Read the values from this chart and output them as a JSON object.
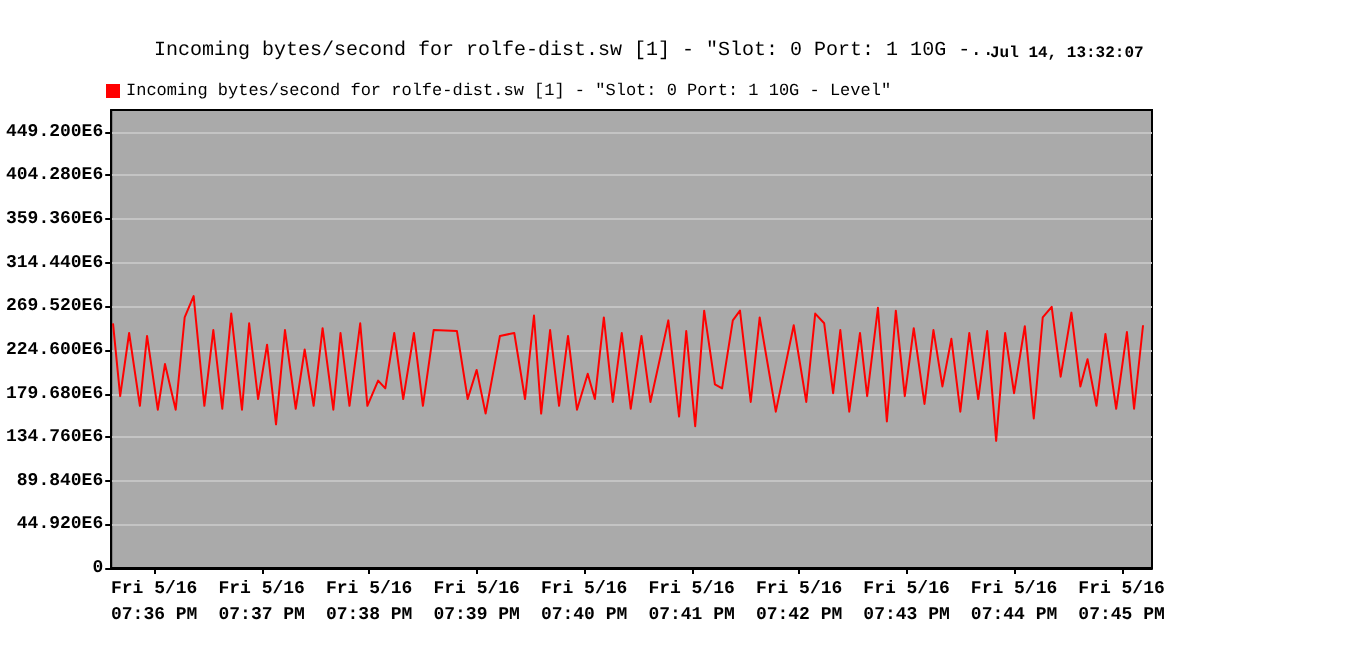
{
  "chart_data": {
    "type": "line",
    "title": "Incoming bytes/second for rolfe-dist.sw [1] - \"Slot: 0 Port: 1 10G -..",
    "annotations": [
      "Jul 14, 13:32:07"
    ],
    "series": [
      {
        "name": "Incoming bytes/second for rolfe-dist.sw [1] - \"Slot: 0 Port: 1 10G - Level\"",
        "color": "#ff0000",
        "x": [
          "--05-16T19:35:37",
          "--05-16T19:35:41",
          "--05-16T19:35:46",
          "--05-16T19:35:52",
          "--05-16T19:35:56",
          "--05-16T19:36:02",
          "--05-16T19:36:06",
          "--05-16T19:36:12",
          "--05-16T19:36:17",
          "--05-16T19:36:22",
          "--05-16T19:36:28",
          "--05-16T19:36:33",
          "--05-16T19:36:38",
          "--05-16T19:36:43",
          "--05-16T19:36:49",
          "--05-16T19:36:53",
          "--05-16T19:36:58",
          "--05-16T19:37:03",
          "--05-16T19:37:08",
          "--05-16T19:37:13",
          "--05-16T19:37:19",
          "--05-16T19:37:24",
          "--05-16T19:37:29",
          "--05-16T19:37:34",
          "--05-16T19:37:40",
          "--05-16T19:37:44",
          "--05-16T19:37:49",
          "--05-16T19:37:55",
          "--05-16T19:37:59",
          "--05-16T19:38:05",
          "--05-16T19:38:09",
          "--05-16T19:38:14",
          "--05-16T19:38:19",
          "--05-16T19:38:25",
          "--05-16T19:38:30",
          "--05-16T19:38:36",
          "--05-16T19:38:49",
          "--05-16T19:38:55",
          "--05-16T19:39:00",
          "--05-16T19:39:05",
          "--05-16T19:39:13",
          "--05-16T19:39:21",
          "--05-16T19:39:27",
          "--05-16T19:39:32",
          "--05-16T19:39:36",
          "--05-16T19:39:41",
          "--05-16T19:39:46",
          "--05-16T19:39:51",
          "--05-16T19:39:56",
          "--05-16T19:40:02",
          "--05-16T19:40:06",
          "--05-16T19:40:11",
          "--05-16T19:40:16",
          "--05-16T19:40:21",
          "--05-16T19:40:26",
          "--05-16T19:40:32",
          "--05-16T19:40:37",
          "--05-16T19:40:47",
          "--05-16T19:40:53",
          "--05-16T19:40:57",
          "--05-16T19:41:02",
          "--05-16T19:41:07",
          "--05-16T19:41:13",
          "--05-16T19:41:17",
          "--05-16T19:41:23",
          "--05-16T19:41:27",
          "--05-16T19:41:33",
          "--05-16T19:41:38",
          "--05-16T19:41:47",
          "--05-16T19:41:57",
          "--05-16T19:42:04",
          "--05-16T19:42:09",
          "--05-16T19:42:14",
          "--05-16T19:42:19",
          "--05-16T19:42:23",
          "--05-16T19:42:28",
          "--05-16T19:42:34",
          "--05-16T19:42:38",
          "--05-16T19:42:44",
          "--05-16T19:42:49",
          "--05-16T19:42:54",
          "--05-16T19:42:59",
          "--05-16T19:43:04",
          "--05-16T19:43:10",
          "--05-16T19:43:15",
          "--05-16T19:43:20",
          "--05-16T19:43:25",
          "--05-16T19:43:30",
          "--05-16T19:43:35",
          "--05-16T19:43:40",
          "--05-16T19:43:45",
          "--05-16T19:43:50",
          "--05-16T19:43:55",
          "--05-16T19:44:00",
          "--05-16T19:44:06",
          "--05-16T19:44:11",
          "--05-16T19:44:16",
          "--05-16T19:44:21",
          "--05-16T19:44:26",
          "--05-16T19:44:32",
          "--05-16T19:44:37",
          "--05-16T19:44:41",
          "--05-16T19:44:46",
          "--05-16T19:44:51",
          "--05-16T19:44:57",
          "--05-16T19:45:03",
          "--05-16T19:45:07",
          "--05-16T19:45:12"
        ],
        "values": [
          252000000,
          177000000,
          242000000,
          167000000,
          239000000,
          163000000,
          210000000,
          163000000,
          258000000,
          280000000,
          167000000,
          245000000,
          164000000,
          262000000,
          163000000,
          252000000,
          174000000,
          230000000,
          148000000,
          245000000,
          164000000,
          225000000,
          167000000,
          247000000,
          163000000,
          242000000,
          167000000,
          252000000,
          167000000,
          193000000,
          185000000,
          242000000,
          174000000,
          242000000,
          167000000,
          245000000,
          244000000,
          174000000,
          204000000,
          159000000,
          239000000,
          242000000,
          174000000,
          260000000,
          159000000,
          245000000,
          167000000,
          239000000,
          163000000,
          200000000,
          174000000,
          258000000,
          171000000,
          242000000,
          164000000,
          239000000,
          171000000,
          255000000,
          156000000,
          244000000,
          146000000,
          265000000,
          189000000,
          185000000,
          255000000,
          265000000,
          171000000,
          258000000,
          161000000,
          250000000,
          171000000,
          262000000,
          252000000,
          180000000,
          245000000,
          161000000,
          242000000,
          177000000,
          268000000,
          151000000,
          265000000,
          177000000,
          247000000,
          169000000,
          245000000,
          187000000,
          236000000,
          161000000,
          242000000,
          174000000,
          244000000,
          131000000,
          242000000,
          180000000,
          249000000,
          154000000,
          258000000,
          269000000,
          197000000,
          263000000,
          187000000,
          215000000,
          167000000,
          241000000,
          164000000,
          243000000,
          164000000,
          250000000
        ]
      }
    ],
    "xlim": [
      "--05-16T19:35:36",
      "--05-16T19:45:17"
    ],
    "xticks": [
      {
        "value": "--05-16T19:36",
        "label": "Fri 5/16\n07:36 PM"
      },
      {
        "value": "--05-16T19:37",
        "label": "Fri 5/16\n07:37 PM"
      },
      {
        "value": "--05-16T19:38",
        "label": "Fri 5/16\n07:38 PM"
      },
      {
        "value": "--05-16T19:39",
        "label": "Fri 5/16\n07:39 PM"
      },
      {
        "value": "--05-16T19:40",
        "label": "Fri 5/16\n07:40 PM"
      },
      {
        "value": "--05-16T19:41",
        "label": "Fri 5/16\n07:41 PM"
      },
      {
        "value": "--05-16T19:42",
        "label": "Fri 5/16\n07:42 PM"
      },
      {
        "value": "--05-16T19:43",
        "label": "Fri 5/16\n07:43 PM"
      },
      {
        "value": "--05-16T19:44",
        "label": "Fri 5/16\n07:44 PM"
      },
      {
        "value": "--05-16T19:45",
        "label": "Fri 5/16\n07:45 PM"
      }
    ],
    "ylim": [
      0,
      471660000
    ],
    "yticks": [
      0,
      {
        "value": 44920000,
        "label": "44.920E6"
      },
      {
        "value": 89840000,
        "label": "89.840E6"
      },
      {
        "value": 134760000,
        "label": "134.760E6"
      },
      {
        "value": 179680000,
        "label": "179.680E6"
      },
      {
        "value": 224600000,
        "label": "224.600E6"
      },
      {
        "value": 269520000,
        "label": "269.520E6"
      },
      {
        "value": 314440000,
        "label": "314.440E6"
      },
      {
        "value": 359360000,
        "label": "359.360E6"
      },
      {
        "value": 404280000,
        "label": "404.280E6"
      },
      {
        "value": 449200000,
        "label": "449.200E6"
      }
    ],
    "grid": "y",
    "legend": "top left",
    "marker": "none",
    "line_style": "solid"
  }
}
